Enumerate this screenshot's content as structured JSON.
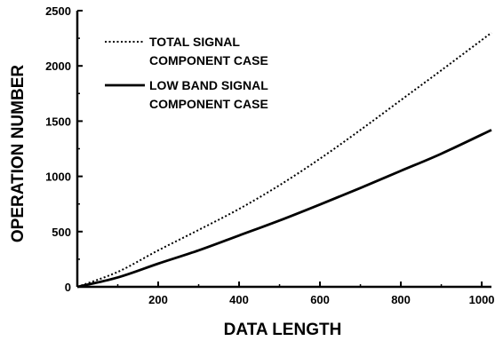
{
  "chart_data": {
    "type": "line",
    "title": "",
    "xlabel": "DATA LENGTH",
    "ylabel": "OPERATION NUMBER",
    "xlim": [
      0,
      1024
    ],
    "ylim": [
      0,
      2500
    ],
    "x_ticks": [
      "200",
      "400",
      "600",
      "800",
      "1000"
    ],
    "y_ticks": [
      "0",
      "500",
      "1000",
      "1500",
      "2000",
      "2500"
    ],
    "grid": false,
    "legend_position": "top-left",
    "x": [
      0,
      100,
      200,
      300,
      400,
      500,
      600,
      700,
      800,
      900,
      1024
    ],
    "series": [
      {
        "name": "TOTAL SIGNAL COMPONENT CASE",
        "line_style": "dotted",
        "values": [
          0,
          135,
          330,
          515,
          705,
          920,
          1160,
          1420,
          1690,
          1960,
          2300
        ]
      },
      {
        "name": "LOW BAND SIGNAL COMPONENT CASE",
        "line_style": "solid",
        "values": [
          0,
          85,
          210,
          330,
          465,
          600,
          745,
          895,
          1050,
          1205,
          1420
        ]
      }
    ],
    "legend_lines": [
      [
        "TOTAL SIGNAL",
        "COMPONENT CASE"
      ],
      [
        "LOW BAND SIGNAL",
        "COMPONENT CASE"
      ]
    ]
  }
}
